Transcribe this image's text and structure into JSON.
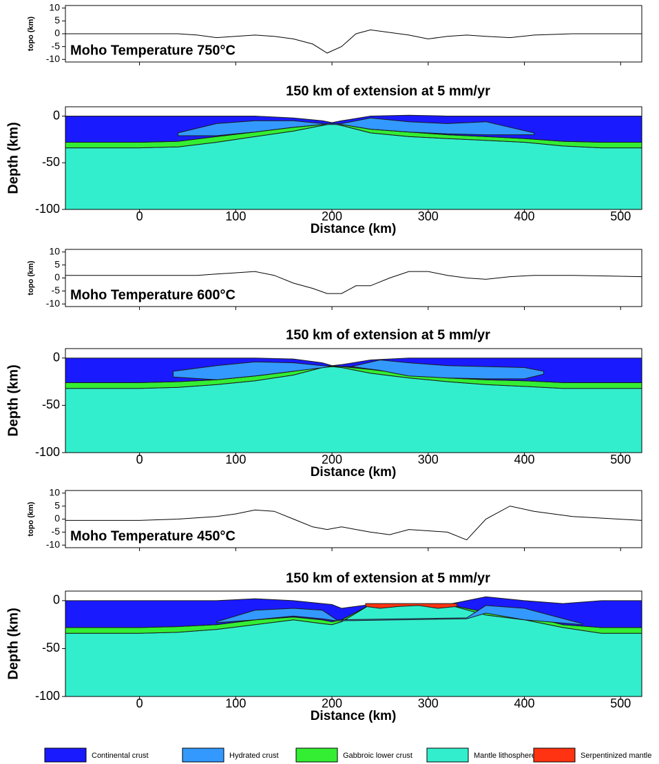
{
  "chart_data": [
    {
      "type": "line",
      "ylabel": "topo (km)",
      "annotation": "Moho Temperature 750°C",
      "xlim": [
        -77,
        522
      ],
      "ylim": [
        -11,
        11
      ],
      "yticks": [
        10,
        5,
        0,
        -5,
        -10
      ],
      "xticks": [
        0,
        100,
        200,
        300,
        400,
        500
      ],
      "x": [
        -77,
        -40,
        0,
        40,
        60,
        80,
        100,
        120,
        140,
        160,
        180,
        195,
        210,
        225,
        240,
        260,
        280,
        300,
        320,
        340,
        360,
        385,
        410,
        450,
        522
      ],
      "values": [
        0,
        0,
        0,
        0,
        -0.5,
        -1.5,
        -1,
        -0.5,
        -1,
        -2,
        -4,
        -7.5,
        -5,
        0,
        1.5,
        0.5,
        -0.5,
        -2,
        -1,
        -0.5,
        -1,
        -1.5,
        -0.5,
        0,
        0
      ],
      "color": "#000000"
    },
    {
      "type": "section",
      "title": "150 km of extension at 5 mm/yr",
      "xlabel": "Distance (km)",
      "ylabel": "Depth (km)",
      "xlim": [
        -77,
        522
      ],
      "ylim": [
        -100,
        10
      ],
      "yticks": [
        0,
        -50,
        -100
      ],
      "xticks": [
        0,
        100,
        200,
        300,
        400,
        500
      ],
      "x": [
        -77,
        0,
        40,
        80,
        120,
        160,
        190,
        200,
        210,
        240,
        280,
        320,
        360,
        400,
        440,
        480,
        522
      ],
      "layers": [
        {
          "color": "#33eecc",
          "top": [
            -34,
            -34,
            -33,
            -28,
            -22,
            -16,
            -10,
            -8,
            -10,
            -18,
            -22,
            -24,
            -26,
            -28,
            -32,
            -34,
            -34
          ]
        },
        {
          "color": "#33ee33",
          "top": [
            -28,
            -28,
            -27,
            -22,
            -17,
            -12,
            -9,
            -8,
            -9,
            -14,
            -17,
            -20,
            -22,
            -24,
            -27,
            -28,
            -28
          ],
          "bottom": [
            -34,
            -34,
            -33,
            -28,
            -22,
            -16,
            -10,
            -8,
            -10,
            -18,
            -22,
            -24,
            -26,
            -28,
            -32,
            -34,
            -34
          ]
        },
        {
          "color": "#1a1aff",
          "top": [
            0,
            0,
            0,
            0,
            0,
            -2,
            -5,
            -7,
            -5,
            0,
            1,
            0,
            0,
            0,
            0,
            0,
            0
          ],
          "bottom": [
            -28,
            -28,
            -27,
            -22,
            -17,
            -12,
            -9,
            -8,
            -9,
            -14,
            -17,
            -20,
            -22,
            -24,
            -27,
            -28,
            -28
          ]
        },
        {
          "color": "#3399ff",
          "x": [
            40,
            80,
            120,
            160,
            190,
            210,
            240,
            280,
            320,
            360,
            410
          ],
          "top": [
            -18,
            -8,
            -5,
            -5,
            -8,
            -8,
            -2,
            -6,
            -8,
            -6,
            -18
          ],
          "bottom": [
            -21,
            -21,
            -17,
            -12,
            -9,
            -9,
            -14,
            -17,
            -19,
            -20,
            -20
          ]
        }
      ]
    },
    {
      "type": "line",
      "ylabel": "topo (km)",
      "annotation": "Moho Temperature 600°C",
      "xlim": [
        -77,
        522
      ],
      "ylim": [
        -11,
        11
      ],
      "yticks": [
        10,
        5,
        0,
        -5,
        -10
      ],
      "xticks": [
        0,
        100,
        200,
        300,
        400,
        500
      ],
      "x": [
        -77,
        -40,
        0,
        40,
        60,
        80,
        100,
        120,
        140,
        160,
        180,
        195,
        210,
        225,
        240,
        260,
        280,
        300,
        320,
        340,
        360,
        385,
        410,
        450,
        522
      ],
      "values": [
        1,
        1,
        1,
        1,
        1,
        1.5,
        2,
        2.5,
        1,
        -2,
        -4,
        -6,
        -6,
        -3,
        -3,
        0,
        2.5,
        2.5,
        1,
        0,
        -0.5,
        0.5,
        1,
        1,
        0.5
      ],
      "color": "#000000"
    },
    {
      "type": "section",
      "title": "150 km of extension at 5 mm/yr",
      "xlabel": "Distance (km)",
      "ylabel": "Depth (km)",
      "xlim": [
        -77,
        522
      ],
      "ylim": [
        -100,
        10
      ],
      "yticks": [
        0,
        -50,
        -100
      ],
      "xticks": [
        0,
        100,
        200,
        300,
        400,
        500
      ],
      "x": [
        -77,
        0,
        40,
        80,
        120,
        160,
        190,
        200,
        210,
        240,
        280,
        320,
        360,
        400,
        440,
        480,
        522
      ],
      "layers": [
        {
          "color": "#33eecc",
          "top": [
            -32,
            -32,
            -31,
            -28,
            -24,
            -18,
            -10,
            -9,
            -10,
            -16,
            -21,
            -25,
            -28,
            -30,
            -32,
            -32,
            -32
          ]
        },
        {
          "color": "#33ee33",
          "top": [
            -26,
            -26,
            -25,
            -23,
            -19,
            -14,
            -9,
            -8,
            -9,
            -12,
            -17,
            -21,
            -23,
            -24,
            -26,
            -26,
            -26
          ],
          "bottom": [
            -32,
            -32,
            -31,
            -28,
            -24,
            -18,
            -10,
            -9,
            -10,
            -16,
            -21,
            -25,
            -28,
            -30,
            -32,
            -32,
            -32
          ]
        },
        {
          "color": "#1a1aff",
          "top": [
            0,
            0,
            0,
            0,
            0,
            -1,
            -5,
            -8,
            -7,
            -2,
            0,
            0,
            0,
            0,
            0,
            0,
            0
          ],
          "bottom": [
            -26,
            -26,
            -25,
            -23,
            -19,
            -14,
            -9,
            -8,
            -9,
            -12,
            -17,
            -21,
            -23,
            -24,
            -26,
            -26,
            -26
          ]
        },
        {
          "color": "#3399ff",
          "x": [
            35,
            80,
            120,
            160,
            200,
            220,
            250,
            280,
            320,
            360,
            400,
            420
          ],
          "top": [
            -14,
            -8,
            -4,
            -5,
            -9,
            -9,
            -2,
            -5,
            -8,
            -9,
            -10,
            -14
          ],
          "bottom": [
            -20,
            -23,
            -19,
            -14,
            -9,
            -9,
            -13,
            -19,
            -21,
            -22,
            -22,
            -17
          ]
        }
      ]
    },
    {
      "type": "line",
      "ylabel": "topo (km)",
      "annotation": "Moho Temperature 450°C",
      "xlim": [
        -77,
        522
      ],
      "ylim": [
        -11,
        11
      ],
      "yticks": [
        10,
        5,
        0,
        -5,
        -10
      ],
      "xticks": [
        0,
        100,
        200,
        300,
        400,
        500
      ],
      "x": [
        -77,
        -40,
        0,
        40,
        60,
        80,
        100,
        120,
        140,
        160,
        180,
        195,
        210,
        225,
        240,
        260,
        280,
        300,
        320,
        340,
        360,
        385,
        410,
        450,
        522
      ],
      "values": [
        -0.5,
        -0.5,
        -0.5,
        0,
        0.5,
        1,
        2,
        3.5,
        3,
        0,
        -3,
        -4,
        -3,
        -4,
        -5,
        -6,
        -4,
        -4.5,
        -5,
        -8,
        0,
        5,
        3,
        1,
        -0.5
      ],
      "color": "#000000"
    },
    {
      "type": "section",
      "title": "150 km of extension at 5 mm/yr",
      "xlabel": "Distance (km)",
      "ylabel": "Depth (km)",
      "xlim": [
        -77,
        522
      ],
      "ylim": [
        -100,
        10
      ],
      "yticks": [
        0,
        -50,
        -100
      ],
      "xticks": [
        0,
        100,
        200,
        300,
        400,
        500
      ],
      "x": [
        -77,
        0,
        40,
        80,
        120,
        160,
        190,
        200,
        210,
        240,
        280,
        320,
        360,
        400,
        440,
        480,
        522
      ],
      "layers": [
        {
          "color": "#33eecc",
          "top": [
            -34,
            -34,
            -33,
            -30,
            -25,
            -20,
            -24,
            -25,
            -22,
            -4,
            -4,
            -4,
            -15,
            -20,
            -28,
            -34,
            -34
          ]
        },
        {
          "color": "#33ee33",
          "top": [
            -28,
            -28,
            -27,
            -25,
            -20,
            -17,
            -20,
            -22,
            -20,
            -4,
            -4,
            -4,
            -12,
            -15,
            -25,
            -28,
            -28
          ],
          "bottom": [
            -34,
            -34,
            -33,
            -30,
            -25,
            -20,
            -24,
            -25,
            -22,
            -4,
            -4,
            -4,
            -15,
            -20,
            -28,
            -34,
            -34
          ]
        },
        {
          "color": "#1a1aff",
          "top": [
            0,
            0,
            0,
            0,
            2,
            0,
            -3,
            -4,
            -8,
            -4,
            -4,
            -4,
            4,
            0,
            -3,
            0,
            0
          ],
          "bottom": [
            -28,
            -28,
            -27,
            -25,
            -20,
            -17,
            -20,
            -22,
            -20,
            -4,
            -4,
            -4,
            -12,
            -15,
            -25,
            -28,
            -28
          ]
        },
        {
          "color": "#3399ff",
          "x": [
            80,
            120,
            160,
            190,
            205,
            340,
            360,
            400,
            460
          ],
          "top": [
            -22,
            -10,
            -8,
            -10,
            -20,
            -18,
            -5,
            -8,
            -24
          ],
          "bottom": [
            -23,
            -20,
            -16,
            -19,
            -21,
            -19,
            -13,
            -20,
            -25
          ]
        },
        {
          "color": "#ff3311",
          "x": [
            235,
            250,
            270,
            290,
            310,
            330
          ],
          "top": [
            -3,
            -3,
            -3,
            -3,
            -3,
            -3
          ],
          "bottom": [
            -6,
            -8,
            -6,
            -5,
            -8,
            -6
          ]
        }
      ]
    }
  ],
  "legend": [
    {
      "name": "Continental crust",
      "color": "#1a1aff"
    },
    {
      "name": "Hydrated crust",
      "color": "#3399ff"
    },
    {
      "name": "Gabbroic lower crust",
      "color": "#33ee33"
    },
    {
      "name": "Mantle lithosphere",
      "color": "#33eecc"
    },
    {
      "name": "Serpentinized mantle",
      "color": "#ff3311"
    }
  ]
}
